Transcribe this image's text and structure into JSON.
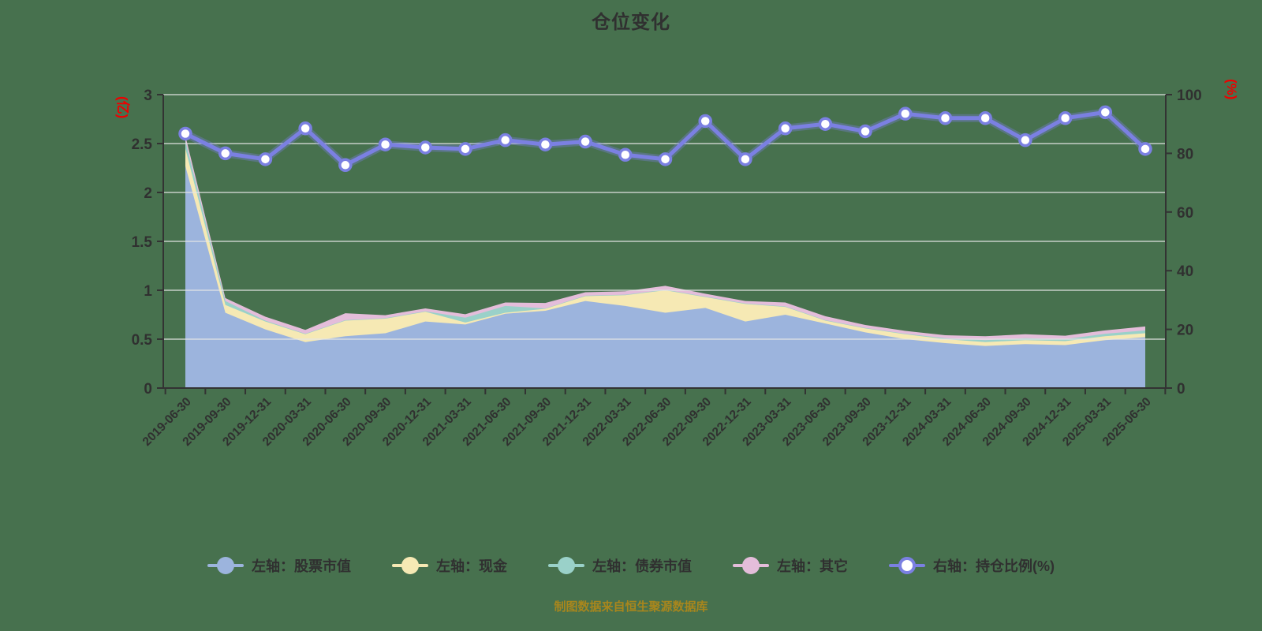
{
  "title": "仓位变化",
  "footer": "制图数据来自恒生聚源数据库",
  "colors": {
    "background": "#47714e",
    "text": "#303030",
    "axis": "#333333",
    "grid": "#e6e6e6",
    "unit_label": "#ee0000",
    "stock": "#9cb4dd",
    "cash": "#f6e9b4",
    "bond": "#9ad1c9",
    "other": "#e4bdda",
    "ratio_line": "#7b80e2",
    "marker_fill": "#ffffff",
    "footer_text": "#a8861d"
  },
  "left_axis": {
    "unit": "(亿)",
    "ticks": [
      0,
      0.5,
      1,
      1.5,
      2,
      2.5,
      3
    ],
    "max": 3
  },
  "right_axis": {
    "unit": "(%)",
    "ticks": [
      0,
      20,
      40,
      60,
      80,
      100
    ],
    "max": 100
  },
  "legend": {
    "items": [
      {
        "label": "左轴：股票市值",
        "color_key": "stock",
        "kind": "area"
      },
      {
        "label": "左轴：现金",
        "color_key": "cash",
        "kind": "area"
      },
      {
        "label": "左轴：债券市值",
        "color_key": "bond",
        "kind": "area"
      },
      {
        "label": "左轴：其它",
        "color_key": "other",
        "kind": "area"
      },
      {
        "label": "右轴：持仓比例(%)",
        "color_key": "ratio_line",
        "kind": "line"
      }
    ]
  },
  "chart_data": {
    "type": "area",
    "title": "仓位变化",
    "x": [
      "2019-06-30",
      "2019-09-30",
      "2019-12-31",
      "2020-03-31",
      "2020-06-30",
      "2020-09-30",
      "2020-12-31",
      "2021-03-31",
      "2021-06-30",
      "2021-09-30",
      "2021-12-31",
      "2022-03-31",
      "2022-06-30",
      "2022-09-30",
      "2022-12-31",
      "2023-03-31",
      "2023-06-30",
      "2023-09-30",
      "2023-12-31",
      "2024-03-31",
      "2024-06-30",
      "2024-09-30",
      "2024-12-31",
      "2025-03-31",
      "2025-06-30"
    ],
    "left_ylim": [
      0,
      3
    ],
    "right_ylim": [
      0,
      100
    ],
    "grid": true,
    "legend_position": "bottom",
    "series": [
      {
        "name": "左轴：股票市值",
        "axis": "left",
        "type": "stacked-area",
        "color_key": "stock",
        "values": [
          2.27,
          0.77,
          0.6,
          0.47,
          0.53,
          0.56,
          0.68,
          0.65,
          0.76,
          0.79,
          0.89,
          0.84,
          0.77,
          0.82,
          0.68,
          0.75,
          0.66,
          0.57,
          0.5,
          0.46,
          0.43,
          0.45,
          0.44,
          0.49,
          0.52
        ]
      },
      {
        "name": "左轴：现金",
        "axis": "left",
        "type": "stacked-area",
        "color_key": "cash",
        "values": [
          0.18,
          0.08,
          0.08,
          0.08,
          0.16,
          0.15,
          0.1,
          0.02,
          0.01,
          0.02,
          0.05,
          0.11,
          0.23,
          0.11,
          0.18,
          0.08,
          0.03,
          0.04,
          0.05,
          0.04,
          0.04,
          0.04,
          0.04,
          0.04,
          0.04
        ]
      },
      {
        "name": "左轴：债券市值",
        "axis": "left",
        "type": "stacked-area",
        "color_key": "bond",
        "values": [
          0.08,
          0.04,
          0.01,
          0.005,
          0.005,
          0.005,
          0.005,
          0.05,
          0.07,
          0.005,
          0.005,
          0.005,
          0.005,
          0.005,
          0.005,
          0.005,
          0.005,
          0.005,
          0.005,
          0.01,
          0.02,
          0.02,
          0.02,
          0.025,
          0.03
        ]
      },
      {
        "name": "左轴：其它",
        "axis": "left",
        "type": "stacked-area",
        "color_key": "other",
        "values": [
          0.05,
          0.03,
          0.04,
          0.04,
          0.07,
          0.03,
          0.03,
          0.035,
          0.035,
          0.055,
          0.035,
          0.035,
          0.04,
          0.03,
          0.025,
          0.04,
          0.04,
          0.03,
          0.03,
          0.03,
          0.04,
          0.04,
          0.035,
          0.035,
          0.04
        ]
      },
      {
        "name": "右轴：持仓比例(%)",
        "axis": "right",
        "type": "line",
        "color_key": "ratio_line",
        "values": [
          86.7,
          80,
          78,
          88.5,
          76,
          83,
          82,
          81.5,
          84.5,
          83,
          84,
          79.5,
          78,
          91,
          78,
          88.5,
          90,
          87.5,
          93.5,
          92,
          92,
          84.5,
          92,
          94,
          81.5
        ]
      }
    ]
  }
}
